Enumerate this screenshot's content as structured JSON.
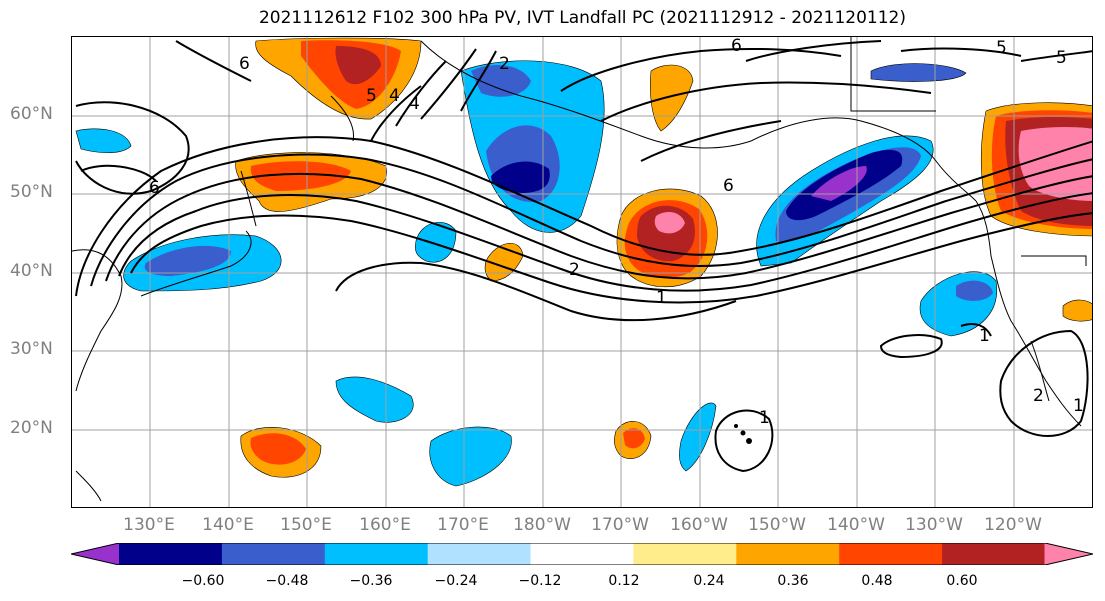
{
  "title": "2021112612 F102 300 hPa PV, IVT Landfall PC (2021112912 - 2021120112)",
  "latitude_labels": [
    "60°N",
    "50°N",
    "40°N",
    "30°N",
    "20°N"
  ],
  "longitude_labels": [
    "130°E",
    "140°E",
    "150°E",
    "160°E",
    "170°E",
    "180°W",
    "170°W",
    "160°W",
    "150°W",
    "140°W",
    "130°W",
    "120°W"
  ],
  "contour_labels": [
    "6",
    "6",
    "6",
    "6",
    "5",
    "5",
    "5",
    "4",
    "4",
    "2",
    "2",
    "2",
    "1",
    "1",
    "1",
    "1"
  ],
  "colorbar": {
    "colors": [
      "#9932CC",
      "#00008B",
      "#3A5FCD",
      "#00BFFF",
      "#B0E2FF",
      "#FFFFFF",
      "#FFEC8B",
      "#FFA500",
      "#FF4500",
      "#B22222",
      "#FF82AB"
    ],
    "tick_labels": [
      "−0.60",
      "−0.48",
      "−0.36",
      "−0.24",
      "−0.12",
      "0.12",
      "0.24",
      "0.36",
      "0.48",
      "0.60"
    ]
  }
}
